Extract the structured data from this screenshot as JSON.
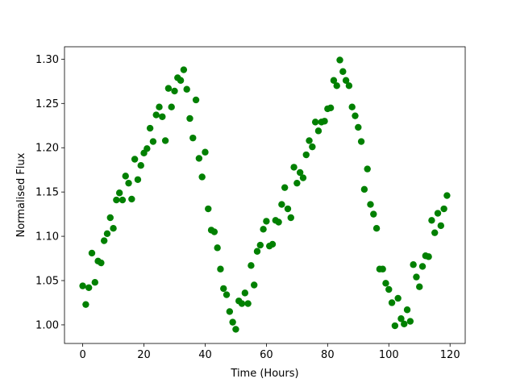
{
  "chart_data": {
    "type": "scatter",
    "x_label": "Time (Hours)",
    "y_label": "Normalised Flux",
    "color": "#008000",
    "x": [
      0,
      1,
      2,
      3,
      4,
      5,
      6,
      7,
      8,
      9,
      10,
      11,
      12,
      13,
      14,
      15,
      16,
      17,
      18,
      19,
      20,
      21,
      22,
      23,
      24,
      25,
      26,
      27,
      28,
      29,
      30,
      31,
      32,
      33,
      34,
      35,
      36,
      37,
      38,
      39,
      40,
      41,
      42,
      43,
      44,
      45,
      46,
      47,
      48,
      49,
      50,
      51,
      52,
      53,
      54,
      55,
      56,
      57,
      58,
      59,
      60,
      61,
      62,
      63,
      64,
      65,
      66,
      67,
      68,
      69,
      70,
      71,
      72,
      73,
      74,
      75,
      76,
      77,
      78,
      79,
      80,
      81,
      82,
      83,
      84,
      85,
      86,
      87,
      88,
      89,
      90,
      91,
      92,
      93,
      94,
      95,
      96,
      97,
      98,
      99,
      100,
      101,
      102,
      103,
      104,
      105,
      106,
      107,
      108,
      109,
      110,
      111,
      112,
      113,
      114,
      115,
      116,
      117,
      118,
      119
    ],
    "values": [
      1.044,
      1.023,
      1.042,
      1.081,
      1.048,
      1.072,
      1.07,
      1.095,
      1.103,
      1.121,
      1.109,
      1.141,
      1.149,
      1.141,
      1.168,
      1.16,
      1.142,
      1.187,
      1.164,
      1.18,
      1.194,
      1.199,
      1.222,
      1.207,
      1.237,
      1.246,
      1.235,
      1.208,
      1.267,
      1.246,
      1.264,
      1.279,
      1.276,
      1.288,
      1.266,
      1.233,
      1.211,
      1.254,
      1.188,
      1.167,
      1.195,
      1.131,
      1.107,
      1.105,
      1.087,
      1.063,
      1.041,
      1.034,
      1.015,
      1.003,
      0.995,
      1.027,
      1.024,
      1.036,
      1.024,
      1.067,
      1.045,
      1.083,
      1.09,
      1.108,
      1.117,
      1.089,
      1.091,
      1.118,
      1.116,
      1.136,
      1.155,
      1.131,
      1.121,
      1.178,
      1.16,
      1.172,
      1.166,
      1.192,
      1.208,
      1.201,
      1.229,
      1.219,
      1.229,
      1.23,
      1.244,
      1.245,
      1.276,
      1.27,
      1.299,
      1.286,
      1.276,
      1.27,
      1.246,
      1.236,
      1.223,
      1.207,
      1.153,
      1.176,
      1.136,
      1.125,
      1.109,
      1.063,
      1.063,
      1.047,
      1.04,
      1.025,
      0.999,
      1.03,
      1.007,
      1.001,
      1.017,
      1.004,
      1.068,
      1.054,
      1.043,
      1.066,
      1.078,
      1.077,
      1.118,
      1.104,
      1.126,
      1.112,
      1.131,
      1.146
    ],
    "xlim": [
      -5.95,
      124.95
    ],
    "ylim": [
      0.979,
      1.314
    ],
    "xticks": [
      0,
      20,
      40,
      60,
      80,
      100,
      120
    ],
    "yticks": [
      {
        "value": 1.0,
        "label": "1.00"
      },
      {
        "value": 1.05,
        "label": "1.05"
      },
      {
        "value": 1.1,
        "label": "1.10"
      },
      {
        "value": 1.15,
        "label": "1.15"
      },
      {
        "value": 1.2,
        "label": "1.20"
      },
      {
        "value": 1.25,
        "label": "1.25"
      },
      {
        "value": 1.3,
        "label": "1.30"
      }
    ]
  }
}
